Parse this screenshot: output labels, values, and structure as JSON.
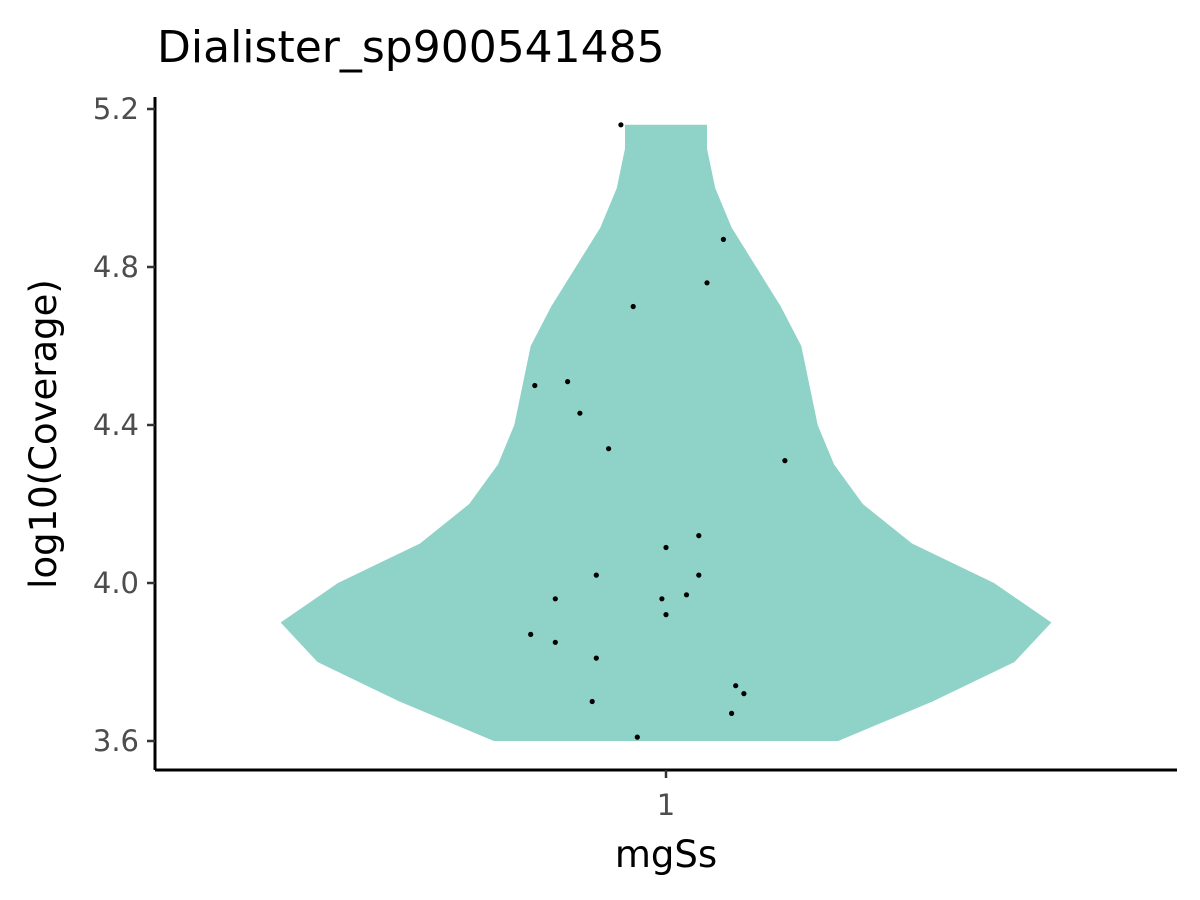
{
  "chart_data": {
    "type": "violin",
    "title": "Dialister_sp900541485",
    "xlabel": "mgSs",
    "ylabel": "log10(Coverage)",
    "categories": [
      "1"
    ],
    "ylim": [
      3.53,
      5.22
    ],
    "yticks": [
      3.6,
      4.0,
      4.4,
      4.8,
      5.2
    ],
    "ytick_labels": [
      "3.6",
      "4.0",
      "4.4",
      "4.8",
      "5.2"
    ],
    "fill_color": "#8fd3c8",
    "point_color": "#000000",
    "violin_profile": [
      {
        "y": 3.6,
        "halfwidth": 0.42
      },
      {
        "y": 3.7,
        "halfwidth": 0.65
      },
      {
        "y": 3.8,
        "halfwidth": 0.85
      },
      {
        "y": 3.9,
        "halfwidth": 0.94
      },
      {
        "y": 4.0,
        "halfwidth": 0.8
      },
      {
        "y": 4.1,
        "halfwidth": 0.6
      },
      {
        "y": 4.2,
        "halfwidth": 0.48
      },
      {
        "y": 4.3,
        "halfwidth": 0.41
      },
      {
        "y": 4.4,
        "halfwidth": 0.37
      },
      {
        "y": 4.5,
        "halfwidth": 0.35
      },
      {
        "y": 4.6,
        "halfwidth": 0.33
      },
      {
        "y": 4.7,
        "halfwidth": 0.28
      },
      {
        "y": 4.8,
        "halfwidth": 0.22
      },
      {
        "y": 4.9,
        "halfwidth": 0.16
      },
      {
        "y": 5.0,
        "halfwidth": 0.12
      },
      {
        "y": 5.1,
        "halfwidth": 0.1
      },
      {
        "y": 5.16,
        "halfwidth": 0.1
      }
    ],
    "points": [
      {
        "x": -0.11,
        "y": 5.16
      },
      {
        "x": 0.14,
        "y": 4.87
      },
      {
        "x": 0.1,
        "y": 4.76
      },
      {
        "x": -0.08,
        "y": 4.7
      },
      {
        "x": -0.24,
        "y": 4.51
      },
      {
        "x": -0.32,
        "y": 4.5
      },
      {
        "x": -0.21,
        "y": 4.43
      },
      {
        "x": -0.14,
        "y": 4.34
      },
      {
        "x": 0.29,
        "y": 4.31
      },
      {
        "x": 0.08,
        "y": 4.12
      },
      {
        "x": 0.0,
        "y": 4.09
      },
      {
        "x": 0.08,
        "y": 4.02
      },
      {
        "x": -0.17,
        "y": 4.02
      },
      {
        "x": 0.05,
        "y": 3.97
      },
      {
        "x": -0.27,
        "y": 3.96
      },
      {
        "x": -0.01,
        "y": 3.96
      },
      {
        "x": 0.0,
        "y": 3.92
      },
      {
        "x": -0.33,
        "y": 3.87
      },
      {
        "x": -0.27,
        "y": 3.85
      },
      {
        "x": -0.17,
        "y": 3.81
      },
      {
        "x": 0.17,
        "y": 3.74
      },
      {
        "x": 0.19,
        "y": 3.72
      },
      {
        "x": -0.18,
        "y": 3.7
      },
      {
        "x": 0.16,
        "y": 3.67
      },
      {
        "x": -0.07,
        "y": 3.61
      }
    ]
  }
}
